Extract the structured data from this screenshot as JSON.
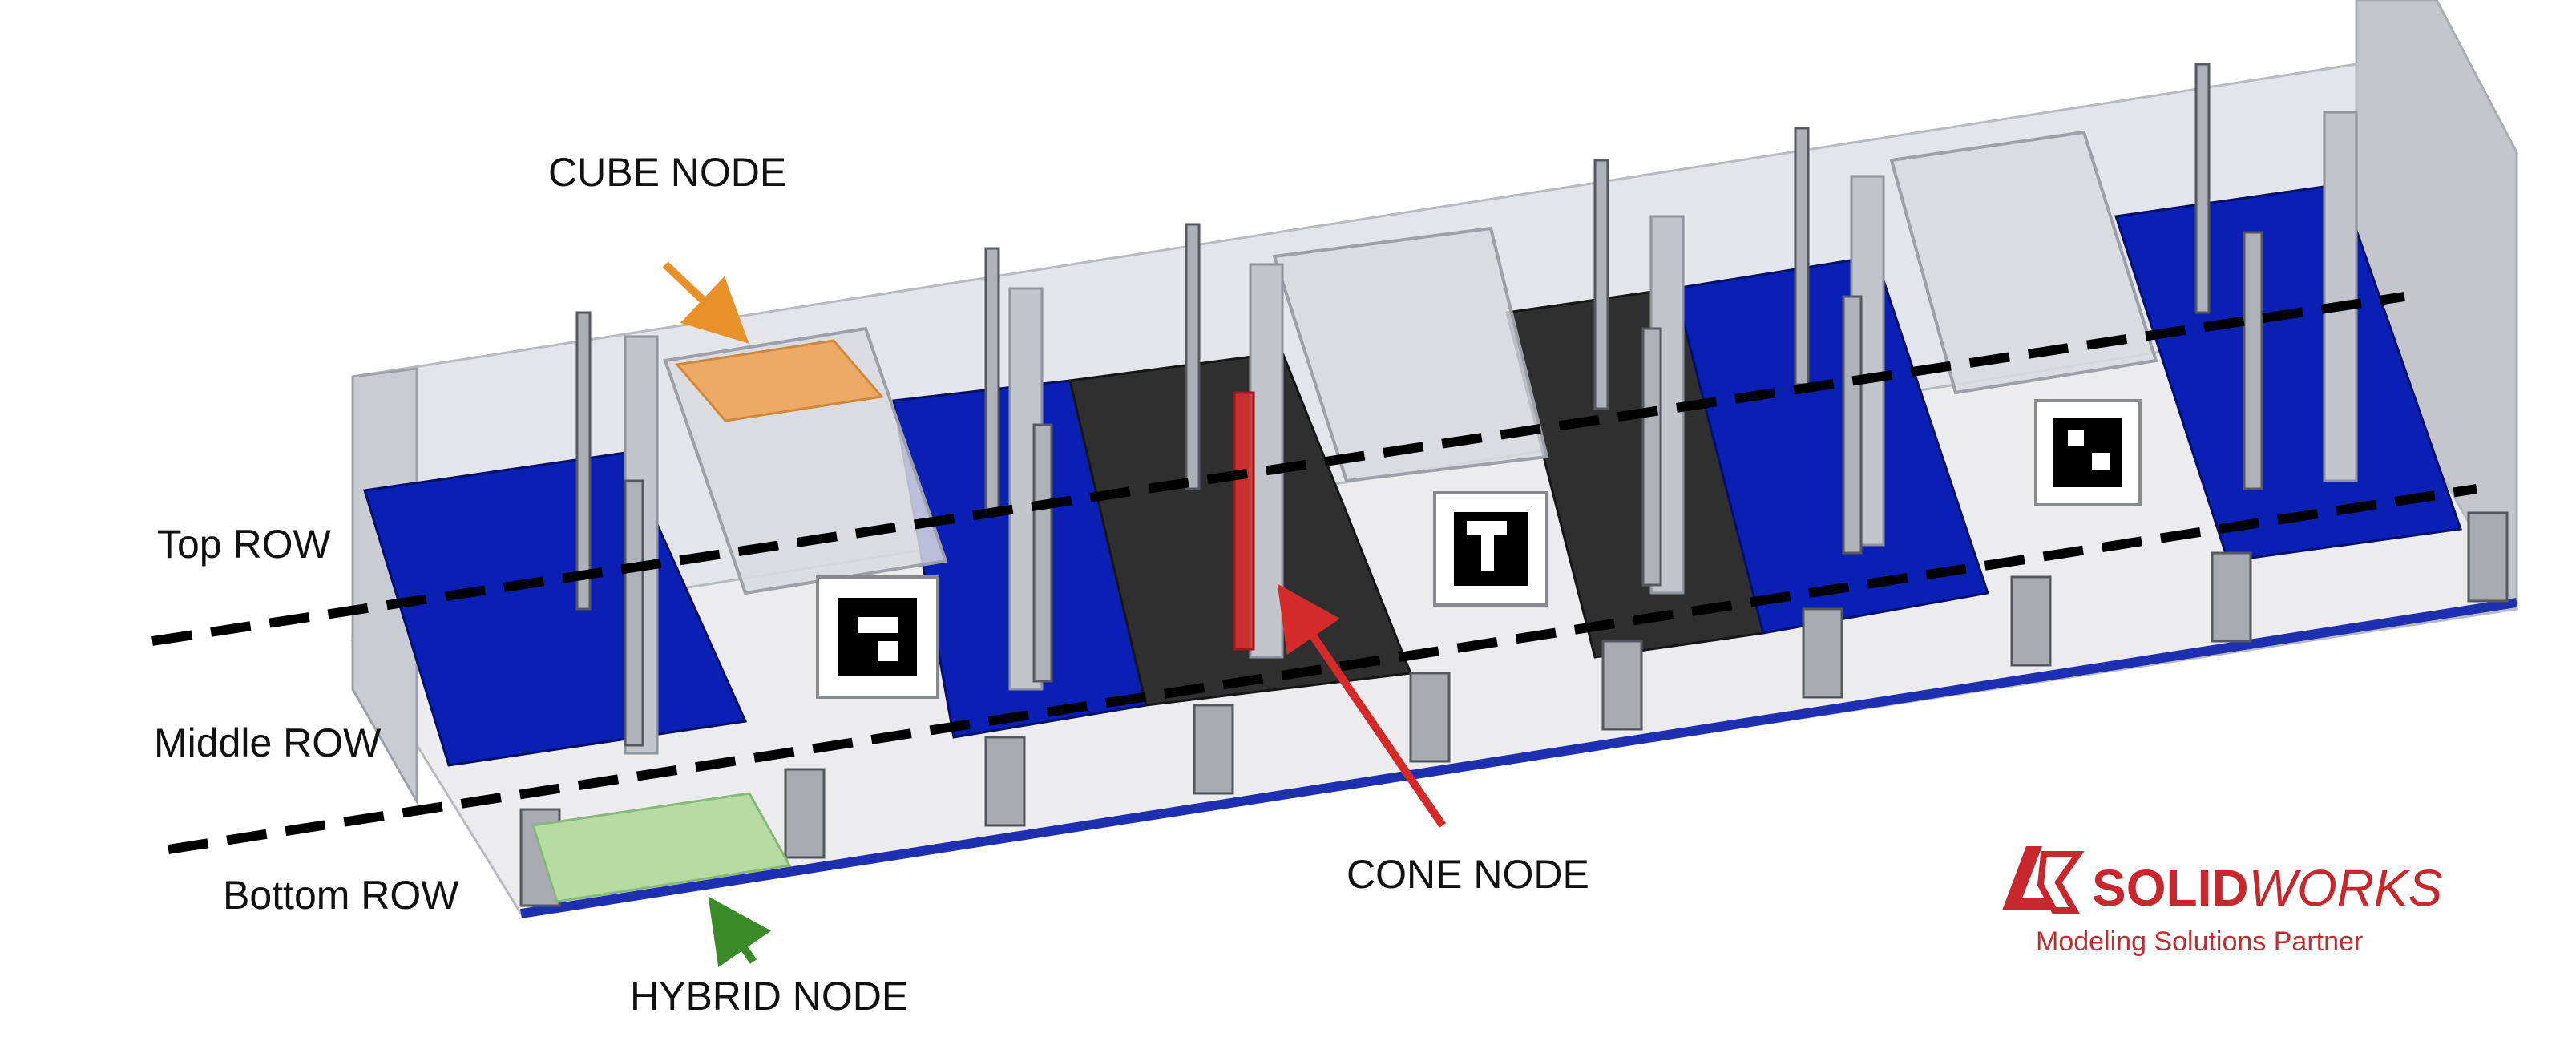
{
  "labels": {
    "top_row": "Top ROW",
    "middle_row": "Middle ROW",
    "bottom_row": "Bottom ROW",
    "cube_node": "CUBE NODE",
    "cone_node": "CONE NODE",
    "hybrid_node": "HYBRID NODE"
  },
  "logo": {
    "brand_bold": "SOLID",
    "brand_light": "WORKS",
    "tagline": "Modeling Solutions Partner",
    "mark": "3DS"
  },
  "colors": {
    "blue_panel": "#0a1fb3",
    "dark_panel": "#2f2f2f",
    "cube_highlight": "#f0a050",
    "cone_highlight": "#e03030",
    "hybrid_highlight": "#b6dca4",
    "cube_arrow": "#e8902a",
    "cone_arrow": "#d42a2a",
    "hybrid_arrow": "#3a8a2a",
    "logo_red": "#c8282d",
    "frame_grey": "#c9ccd3"
  },
  "nodes": [
    {
      "type": "cone",
      "panel": "blue"
    },
    {
      "type": "cube",
      "panel": "none"
    },
    {
      "type": "cone",
      "panel": "blue"
    },
    {
      "type": "cone",
      "panel": "dark"
    },
    {
      "type": "cube",
      "panel": "none"
    },
    {
      "type": "cone",
      "panel": "dark"
    },
    {
      "type": "cone",
      "panel": "blue"
    },
    {
      "type": "cube",
      "panel": "none"
    },
    {
      "type": "cone",
      "panel": "blue"
    }
  ]
}
